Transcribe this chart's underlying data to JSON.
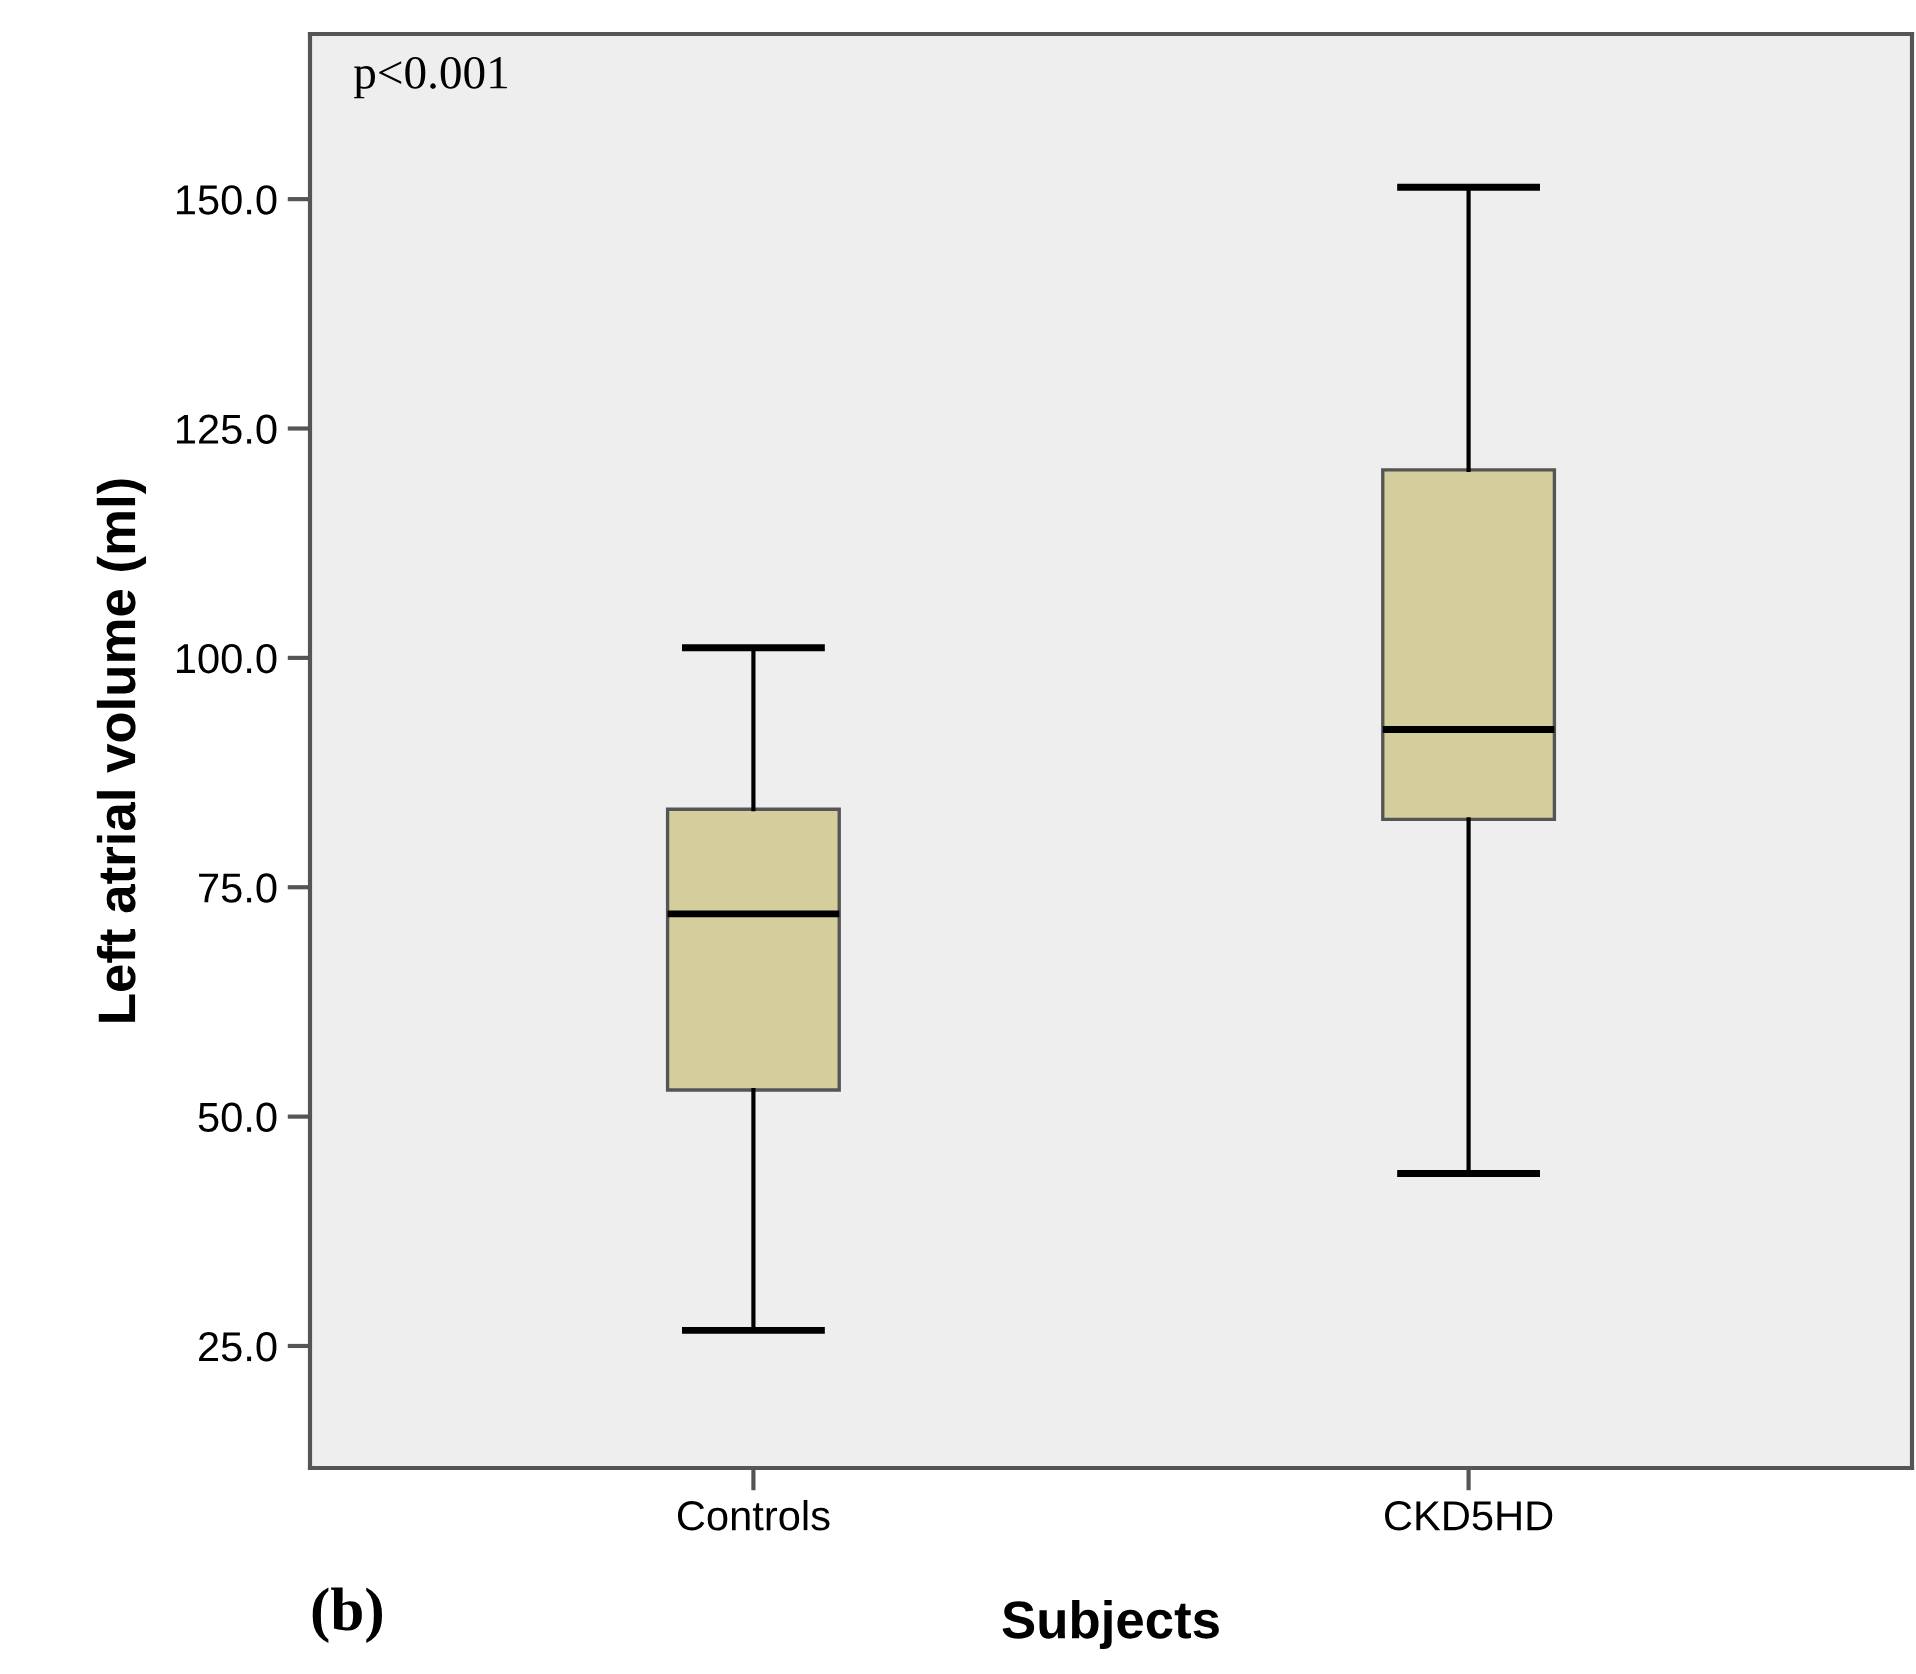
{
  "chart_data": {
    "type": "box",
    "xlabel": "Subjects",
    "ylabel": "Left atrial volume (ml)",
    "categories": [
      "Controls",
      "CKD5HD"
    ],
    "boxes": [
      {
        "low": 26.7,
        "q1": 52.9,
        "median": 72.1,
        "q3": 83.5,
        "high": 101.1
      },
      {
        "low": 43.8,
        "q1": 82.4,
        "median": 92.2,
        "q3": 120.5,
        "high": 151.3
      }
    ],
    "color": "#d3ce9b",
    "ylim": [
      11.7,
      168
    ],
    "yticks": [
      {
        "value": 25,
        "label": "25.0"
      },
      {
        "value": 50,
        "label": "50.0"
      },
      {
        "value": 75,
        "label": "75.0"
      },
      {
        "value": 100,
        "label": "100.0"
      },
      {
        "value": 125,
        "label": "125.0"
      },
      {
        "value": 150,
        "label": "150.0"
      }
    ],
    "annotations": [
      "p<0.001",
      "(b)"
    ],
    "grid": false
  }
}
